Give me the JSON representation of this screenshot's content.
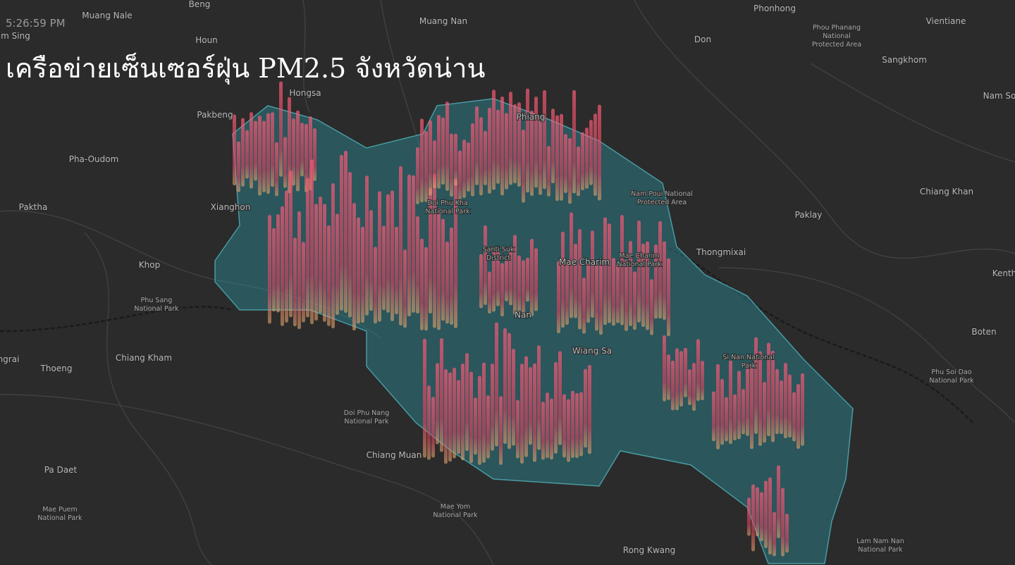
{
  "header": {
    "time": "5:26:59 PM",
    "title": "เครือข่ายเซ็นเซอร์ฝุ่น PM2.5 จังหวัดน่าน"
  },
  "places": [
    {
      "lines": [
        "Beng"
      ]
    },
    {
      "lines": [
        "Muang Nale"
      ]
    },
    {
      "lines": [
        "Muang Nan"
      ]
    },
    {
      "lines": [
        "Phonhong"
      ]
    },
    {
      "lines": [
        "Vientiane"
      ]
    },
    {
      "lines": [
        "Phou Phanang",
        "National",
        "Protected Area"
      ]
    },
    {
      "lines": [
        "m Sing"
      ]
    },
    {
      "lines": [
        "Houn"
      ]
    },
    {
      "lines": [
        "Don"
      ]
    },
    {
      "lines": [
        "Sangkhom"
      ]
    },
    {
      "lines": [
        "Nam So"
      ]
    },
    {
      "lines": [
        "Hongsa"
      ]
    },
    {
      "lines": [
        "Pakbeng"
      ]
    },
    {
      "lines": [
        "Phiang"
      ]
    },
    {
      "lines": [
        "Pha-Oudom"
      ]
    },
    {
      "lines": [
        "Chiang Khan"
      ]
    },
    {
      "lines": [
        "Paktha"
      ]
    },
    {
      "lines": [
        "Xianghon"
      ]
    },
    {
      "lines": [
        "Doi Phu Kha",
        "National Park"
      ]
    },
    {
      "lines": [
        "Nam Poui National",
        "Protected Area"
      ]
    },
    {
      "lines": [
        "Paklay"
      ]
    },
    {
      "lines": [
        "Santi Suk",
        "District"
      ]
    },
    {
      "lines": [
        "Thongmixai"
      ]
    },
    {
      "lines": [
        "Mae Charim"
      ]
    },
    {
      "lines": [
        "Mae Charim",
        "National Park"
      ]
    },
    {
      "lines": [
        "Khop"
      ]
    },
    {
      "lines": [
        "Kenth"
      ]
    },
    {
      "lines": [
        "Phu Sang",
        "National Park"
      ]
    },
    {
      "lines": [
        "Nan"
      ]
    },
    {
      "lines": [
        "Wiang Sa"
      ]
    },
    {
      "lines": [
        "Boten"
      ]
    },
    {
      "lines": [
        "Si Nan National",
        "Park"
      ]
    },
    {
      "lines": [
        "ngrai"
      ]
    },
    {
      "lines": [
        "Thoeng"
      ]
    },
    {
      "lines": [
        "Chiang Kham"
      ]
    },
    {
      "lines": [
        "Phu Soi Dao",
        "National Park"
      ]
    },
    {
      "lines": [
        "Doi Phu Nang",
        "National Park"
      ]
    },
    {
      "lines": [
        "Chiang Muan"
      ]
    },
    {
      "lines": [
        "Pa Daet"
      ]
    },
    {
      "lines": [
        "Mae Puem",
        "National Park"
      ]
    },
    {
      "lines": [
        "Mae Yom",
        "National Park"
      ]
    },
    {
      "lines": [
        "Rong Kwang"
      ]
    },
    {
      "lines": [
        "Lam Nam Nan",
        "National Park"
      ]
    }
  ]
}
